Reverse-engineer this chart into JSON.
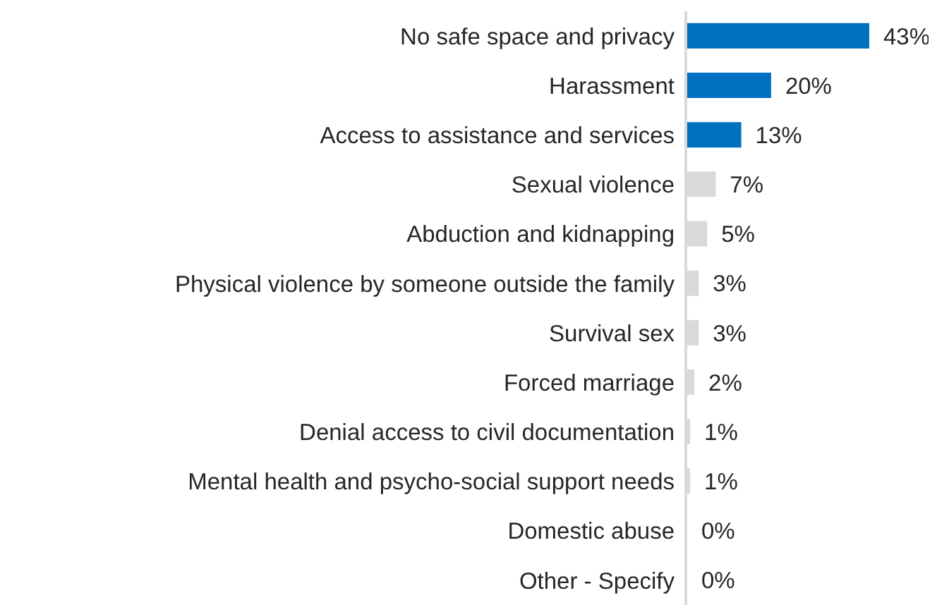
{
  "chart_data": {
    "type": "bar",
    "orientation": "horizontal",
    "categories": [
      "No safe space and privacy",
      "Harassment",
      "Access to assistance and services",
      "Sexual violence",
      "Abduction and kidnapping",
      "Physical violence by someone outside the family",
      "Survival sex",
      "Forced marriage",
      "Denial access to civil documentation",
      "Mental health and psycho-social support needs",
      "Domestic abuse",
      "Other - Specify"
    ],
    "values": [
      43,
      20,
      13,
      7,
      5,
      3,
      3,
      2,
      1,
      1,
      0,
      0
    ],
    "colors": [
      "#0070c0",
      "#0070c0",
      "#0070c0",
      "#d9d9d9",
      "#d9d9d9",
      "#d9d9d9",
      "#d9d9d9",
      "#d9d9d9",
      "#d9d9d9",
      "#d9d9d9",
      "#d9d9d9",
      "#d9d9d9"
    ],
    "value_labels": [
      "43%",
      "20%",
      "13%",
      "7%",
      "5%",
      "3%",
      "3%",
      "2%",
      "1%",
      "1%",
      "0%",
      "0%"
    ],
    "tick_labels": "y"
  }
}
